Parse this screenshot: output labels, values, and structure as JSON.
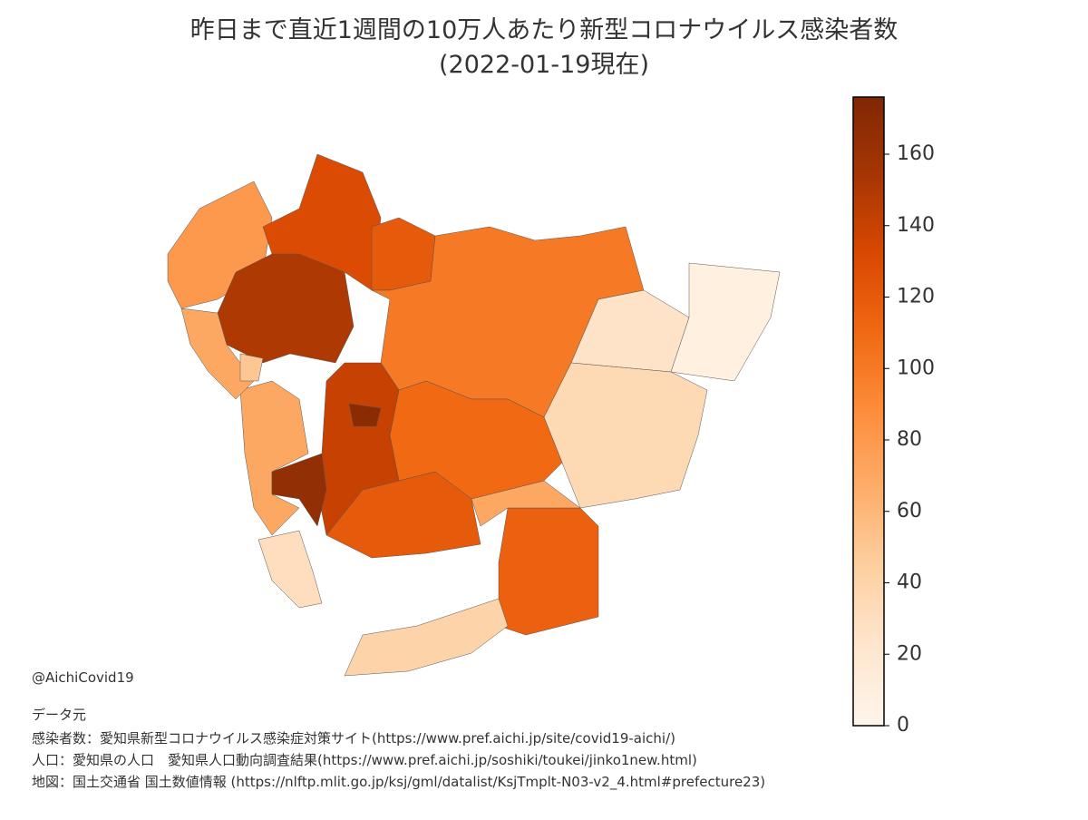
{
  "header": {
    "title": "昨日まで直近1週間の10万人あたり新型コロナウイルス感染者数",
    "subtitle": "(2022-01-19現在)"
  },
  "chart_data": {
    "type": "choropleth",
    "regions": {
      "values": [
        80,
        150,
        130,
        120,
        100,
        25,
        8,
        35,
        110,
        140,
        120,
        115,
        70,
        40,
        70,
        30,
        165,
        170,
        70,
        50
      ]
    },
    "colormap": [
      "#fff5eb",
      "#fee6ce",
      "#fdd0a2",
      "#fdae6b",
      "#fd8d3c",
      "#f16913",
      "#d94801",
      "#a63603",
      "#7f2704"
    ],
    "clim": [
      0,
      176
    ],
    "cticks": [
      0,
      20,
      40,
      60,
      80,
      100,
      120,
      140,
      160
    ]
  },
  "footer": {
    "credit": "@AichiCovid19",
    "source_heading": "データ元",
    "sources": [
      "感染者数：愛知県新型コロナウイルス感染症対策サイト(https://www.pref.aichi.jp/site/covid19-aichi/)",
      "人口：愛知県の人口　愛知県人口動向調査結果(https://www.pref.aichi.jp/soshiki/toukei/jinko1new.html)",
      "地図：国土交通省 国土数値情報 (https://nlftp.mlit.go.jp/ksj/gml/datalist/KsjTmplt-N03-v2_4.html#prefecture23)"
    ]
  }
}
